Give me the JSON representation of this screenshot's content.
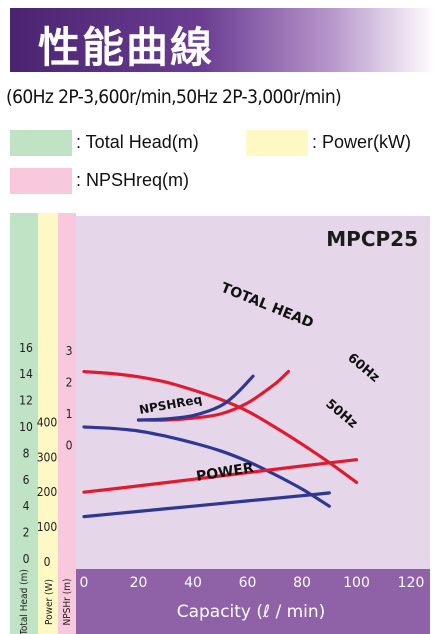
{
  "header": {
    "title": "性能曲線",
    "subtitle": "(60Hz 2P-3,600r/min,50Hz 2P-3,000r/min)"
  },
  "legend": [
    {
      "label": ": Total Head(m)",
      "color": "#bfe3c4"
    },
    {
      "label": ": Power(kW)",
      "color": "#fdf8c4"
    },
    {
      "label": ": NPSHreq(m)",
      "color": "#f8c9dc"
    }
  ],
  "chart_data": {
    "type": "line",
    "model": "MPCP25",
    "xlabel": "Capacity (ℓ / min)",
    "xlim": [
      0,
      120
    ],
    "x_ticks": [
      "0",
      "20",
      "40",
      "60",
      "80",
      "100",
      "120"
    ],
    "head_axis": {
      "label": "Total Head (m)",
      "ticks": [
        "16",
        "14",
        "12",
        "10",
        "8",
        "6",
        "4",
        "2",
        "0"
      ],
      "range": [
        0,
        16
      ]
    },
    "power_axis": {
      "label": "Power (W)",
      "ticks": [
        "400",
        "300",
        "200",
        "100",
        "0"
      ],
      "range": [
        0,
        400
      ]
    },
    "npsh_axis": {
      "label": "NPSHr (m)",
      "ticks": [
        "3",
        "2",
        "1",
        "0"
      ],
      "range": [
        0,
        3
      ]
    },
    "colors": {
      "60Hz": "#e01b2f",
      "50Hz": "#2e3791",
      "plot_bg": "#e6d6ea",
      "head_col": "#bfe3c4",
      "power_col": "#fdf8c4",
      "npsh_col": "#f8c9dc",
      "xaxis_bg": "#8f62a8"
    },
    "annotations": [
      "TOTAL HEAD",
      "60Hz",
      "50Hz",
      "NPSHReq",
      "POWER"
    ],
    "series": [
      {
        "name": "TOTAL HEAD 60Hz",
        "axis": "head",
        "color": "#e01b2f",
        "x": [
          0,
          10,
          20,
          30,
          40,
          50,
          60,
          70,
          80,
          90,
          100
        ],
        "y": [
          14.2,
          14.05,
          13.8,
          13.4,
          12.8,
          12.1,
          11.2,
          10.0,
          8.7,
          7.3,
          5.8
        ]
      },
      {
        "name": "TOTAL HEAD 50Hz",
        "axis": "head",
        "color": "#2e3791",
        "x": [
          0,
          10,
          20,
          30,
          40,
          50,
          60,
          70,
          80,
          90
        ],
        "y": [
          10.0,
          9.9,
          9.7,
          9.3,
          8.8,
          8.2,
          7.4,
          6.4,
          5.3,
          4.0
        ]
      },
      {
        "name": "NPSHReq 60Hz",
        "axis": "npsh",
        "color": "#e01b2f",
        "x": [
          20,
          30,
          40,
          50,
          60,
          70,
          75
        ],
        "y": [
          0.81,
          0.81,
          0.87,
          1.0,
          1.35,
          1.95,
          2.35
        ]
      },
      {
        "name": "NPSHReq 50Hz",
        "axis": "npsh",
        "color": "#2e3791",
        "x": [
          20,
          30,
          40,
          50,
          56,
          62
        ],
        "y": [
          0.81,
          0.84,
          0.95,
          1.25,
          1.65,
          2.2
        ]
      },
      {
        "name": "POWER 60Hz",
        "axis": "power",
        "color": "#e01b2f",
        "x": [
          0,
          20,
          40,
          60,
          80,
          100
        ],
        "y": [
          200,
          218,
          237,
          256,
          275,
          293
        ]
      },
      {
        "name": "POWER 50Hz",
        "axis": "power",
        "color": "#2e3791",
        "x": [
          0,
          20,
          40,
          60,
          80,
          90
        ],
        "y": [
          130,
          145,
          160,
          175,
          190,
          198
        ]
      }
    ]
  }
}
